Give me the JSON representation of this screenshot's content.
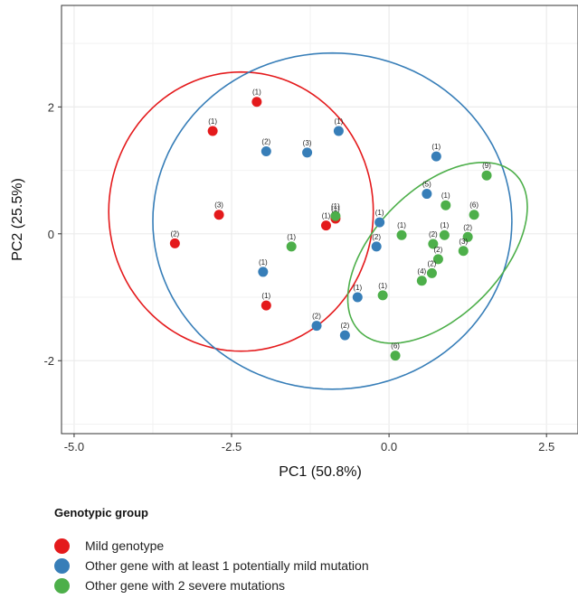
{
  "chart_data": {
    "type": "scatter",
    "xlabel": "PC1 (50.8%)",
    "ylabel": "PC2 (25.5%)",
    "xlim": [
      -5.2,
      3.0
    ],
    "ylim": [
      -3.15,
      3.6
    ],
    "xticks": [
      -5.0,
      -2.5,
      0.0,
      2.5
    ],
    "xtick_labels": [
      "-5.0",
      "-2.5",
      "0.0",
      "2.5"
    ],
    "yticks": [
      -2,
      0,
      2
    ],
    "ytick_labels": [
      "-2",
      "0",
      "2"
    ],
    "grid": true,
    "legend_title": "Genotypic group",
    "series": [
      {
        "name": "Mild genotype",
        "color": "#e41a1c",
        "points": [
          {
            "x": -2.1,
            "y": 2.08,
            "label": "(1)"
          },
          {
            "x": -2.8,
            "y": 1.62,
            "label": "(1)"
          },
          {
            "x": -2.7,
            "y": 0.3,
            "label": "(3)"
          },
          {
            "x": -3.4,
            "y": -0.15,
            "label": "(2)"
          },
          {
            "x": -1.0,
            "y": 0.13,
            "label": "(1)"
          },
          {
            "x": -0.85,
            "y": 0.24,
            "label": "(1)"
          },
          {
            "x": -1.95,
            "y": -1.13,
            "label": "(1)"
          }
        ]
      },
      {
        "name": "Other gene with at least 1 potentially mild mutation",
        "color": "#377eb8",
        "points": [
          {
            "x": -0.8,
            "y": 1.62,
            "label": "(1)"
          },
          {
            "x": -1.95,
            "y": 1.3,
            "label": "(2)"
          },
          {
            "x": -1.3,
            "y": 1.28,
            "label": "(3)"
          },
          {
            "x": -2.0,
            "y": -0.6,
            "label": "(1)"
          },
          {
            "x": -1.15,
            "y": -1.45,
            "label": "(2)"
          },
          {
            "x": -0.5,
            "y": -1.0,
            "label": "(1)"
          },
          {
            "x": -0.7,
            "y": -1.6,
            "label": "(2)"
          },
          {
            "x": -0.15,
            "y": 0.18,
            "label": "(1)"
          },
          {
            "x": -0.2,
            "y": -0.2,
            "label": "(2)"
          },
          {
            "x": 0.75,
            "y": 1.22,
            "label": "(1)"
          },
          {
            "x": 0.6,
            "y": 0.63,
            "label": "(5)"
          }
        ]
      },
      {
        "name": "Other gene with 2 severe mutations",
        "color": "#4daf4a",
        "points": [
          {
            "x": -0.85,
            "y": 0.28,
            "label": "(1)"
          },
          {
            "x": -1.55,
            "y": -0.2,
            "label": "(1)"
          },
          {
            "x": -0.1,
            "y": -0.97,
            "label": "(1)"
          },
          {
            "x": 0.2,
            "y": -0.02,
            "label": "(1)"
          },
          {
            "x": 0.1,
            "y": -1.92,
            "label": "(6)"
          },
          {
            "x": 0.9,
            "y": 0.45,
            "label": "(1)"
          },
          {
            "x": 1.55,
            "y": 0.92,
            "label": "(9)"
          },
          {
            "x": 1.35,
            "y": 0.3,
            "label": "(6)"
          },
          {
            "x": 0.7,
            "y": -0.16,
            "label": "(2)"
          },
          {
            "x": 0.88,
            "y": -0.02,
            "label": "(1)"
          },
          {
            "x": 0.78,
            "y": -0.4,
            "label": "(2)"
          },
          {
            "x": 0.68,
            "y": -0.62,
            "label": "(2)"
          },
          {
            "x": 0.52,
            "y": -0.74,
            "label": "(4)"
          },
          {
            "x": 1.25,
            "y": -0.05,
            "label": "(2)"
          },
          {
            "x": 1.18,
            "y": -0.27,
            "label": "(3)"
          }
        ]
      }
    ],
    "ellipses": [
      {
        "series": "Mild genotype",
        "color": "#e41a1c",
        "cx": -2.35,
        "cy": 0.35,
        "rx": 2.1,
        "ry": 2.2,
        "angle": 0
      },
      {
        "series": "Other gene with at least 1 potentially mild mutation",
        "color": "#377eb8",
        "cx": -0.9,
        "cy": 0.2,
        "rx": 2.85,
        "ry": 2.65,
        "angle": 0
      },
      {
        "series": "Other gene with 2 severe mutations",
        "color": "#4daf4a",
        "cx": 0.77,
        "cy": -0.3,
        "rx": 1.75,
        "ry": 1.0,
        "angle": 45
      }
    ]
  }
}
